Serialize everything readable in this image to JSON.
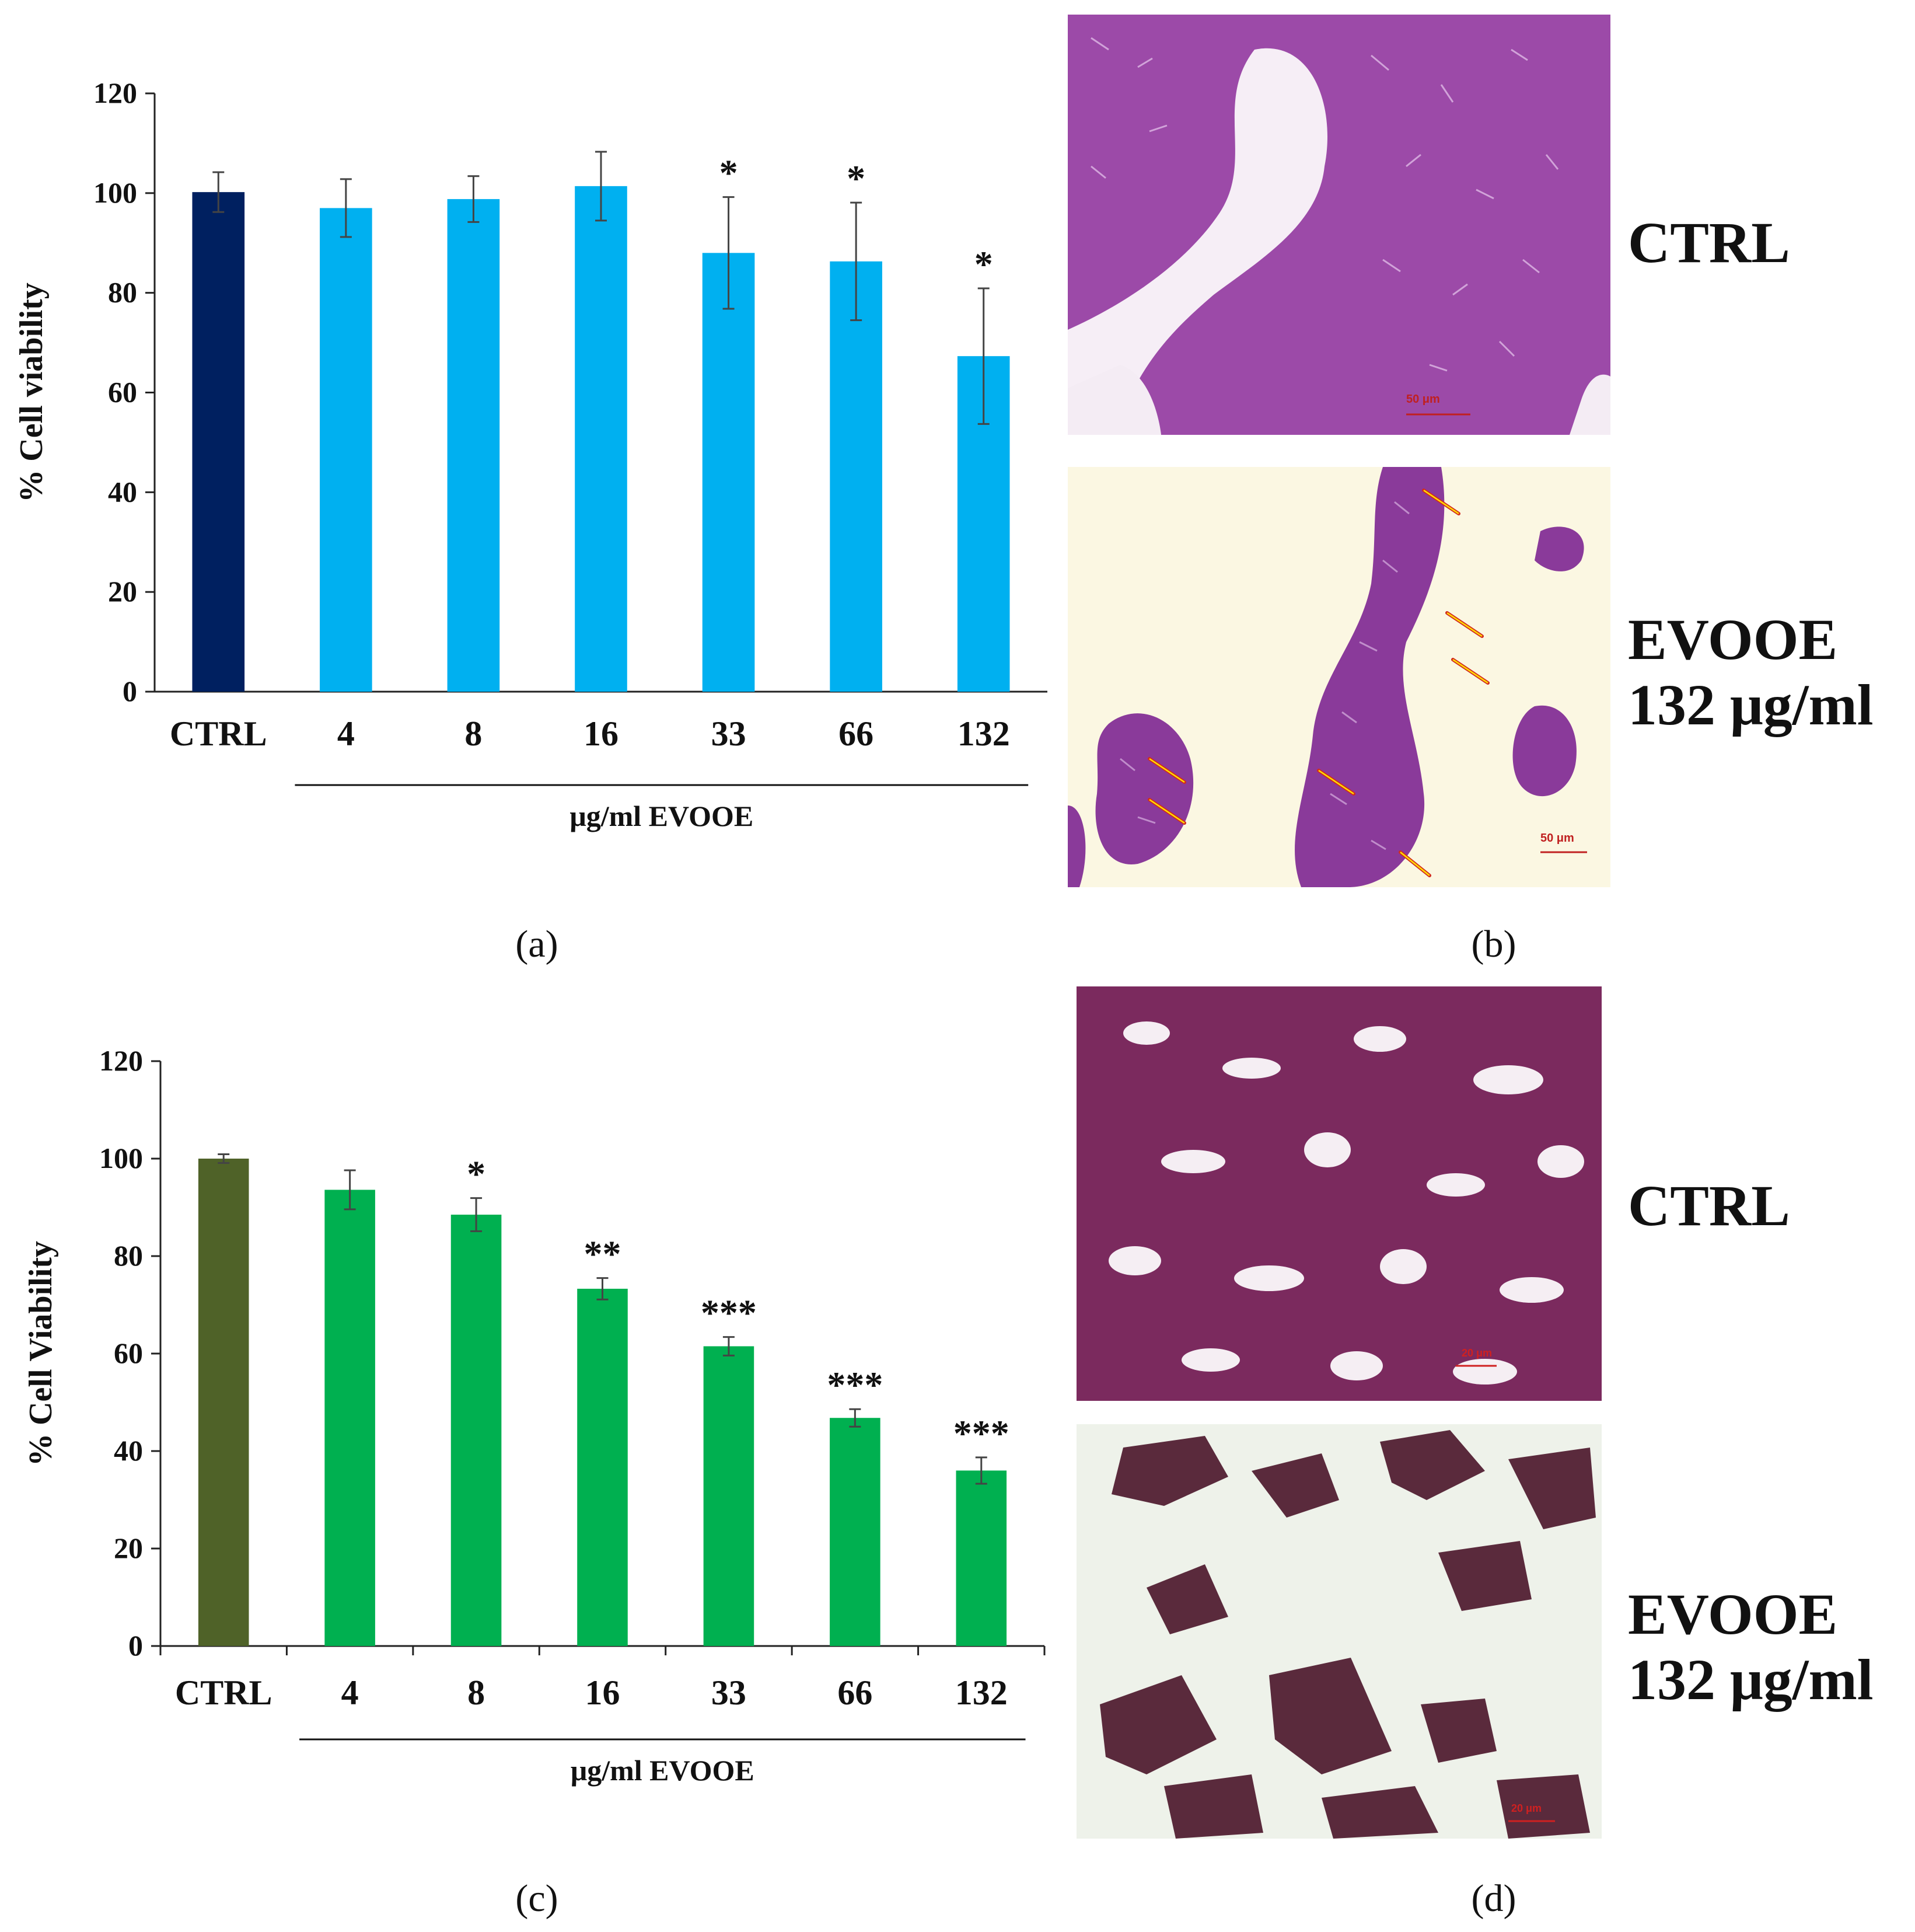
{
  "chart_data": [
    {
      "panel": "(a)",
      "type": "bar",
      "categories": [
        "CTRL",
        "4",
        "8",
        "16",
        "33",
        "66",
        "132"
      ],
      "values": [
        100.2,
        97.0,
        98.8,
        101.4,
        88.0,
        86.3,
        67.3
      ],
      "errors": [
        4.0,
        5.8,
        4.6,
        6.9,
        11.2,
        11.8,
        13.6
      ],
      "significance": [
        "",
        "",
        "",
        "",
        "*",
        "*",
        "*"
      ],
      "ylabel": "% Cell viability",
      "group_label": "μg/ml EVOOE",
      "ylim": [
        0,
        120
      ],
      "yticks": [
        0,
        20,
        40,
        60,
        80,
        100,
        120
      ],
      "colors": {
        "control": "#002060",
        "treated": "#00b0f0"
      },
      "grid": false
    },
    {
      "panel": "(c)",
      "type": "bar",
      "categories": [
        "CTRL",
        "4",
        "8",
        "16",
        "33",
        "66",
        "132"
      ],
      "values": [
        100.0,
        93.6,
        88.5,
        73.3,
        61.5,
        46.8,
        36.0
      ],
      "errors": [
        0.9,
        4.0,
        3.4,
        2.2,
        1.9,
        1.8,
        2.7
      ],
      "significance": [
        "",
        "",
        "*",
        "**",
        "***",
        "***",
        "***"
      ],
      "ylabel": "% Cell Viability",
      "group_label": "μg/ml EVOOE",
      "ylim": [
        0,
        120
      ],
      "yticks": [
        0,
        20,
        40,
        60,
        80,
        100,
        120
      ],
      "colors": {
        "control": "#4f6228",
        "treated": "#00b050"
      },
      "grid": false
    }
  ],
  "panels": {
    "a_letter": "(a)",
    "b_letter": "(b)",
    "c_letter": "(c)",
    "d_letter": "(d)"
  },
  "micrographs": {
    "b_top": {
      "label": "CTRL",
      "scale": "50 μm"
    },
    "b_bottom": {
      "label": "EVOOE\n132 μg/ml",
      "scale": "50 μm"
    },
    "d_top": {
      "label": "CTRL",
      "scale": "20 μm"
    },
    "d_bottom": {
      "label": "EVOOE\n132 μg/ml",
      "scale": "20 μm"
    }
  }
}
